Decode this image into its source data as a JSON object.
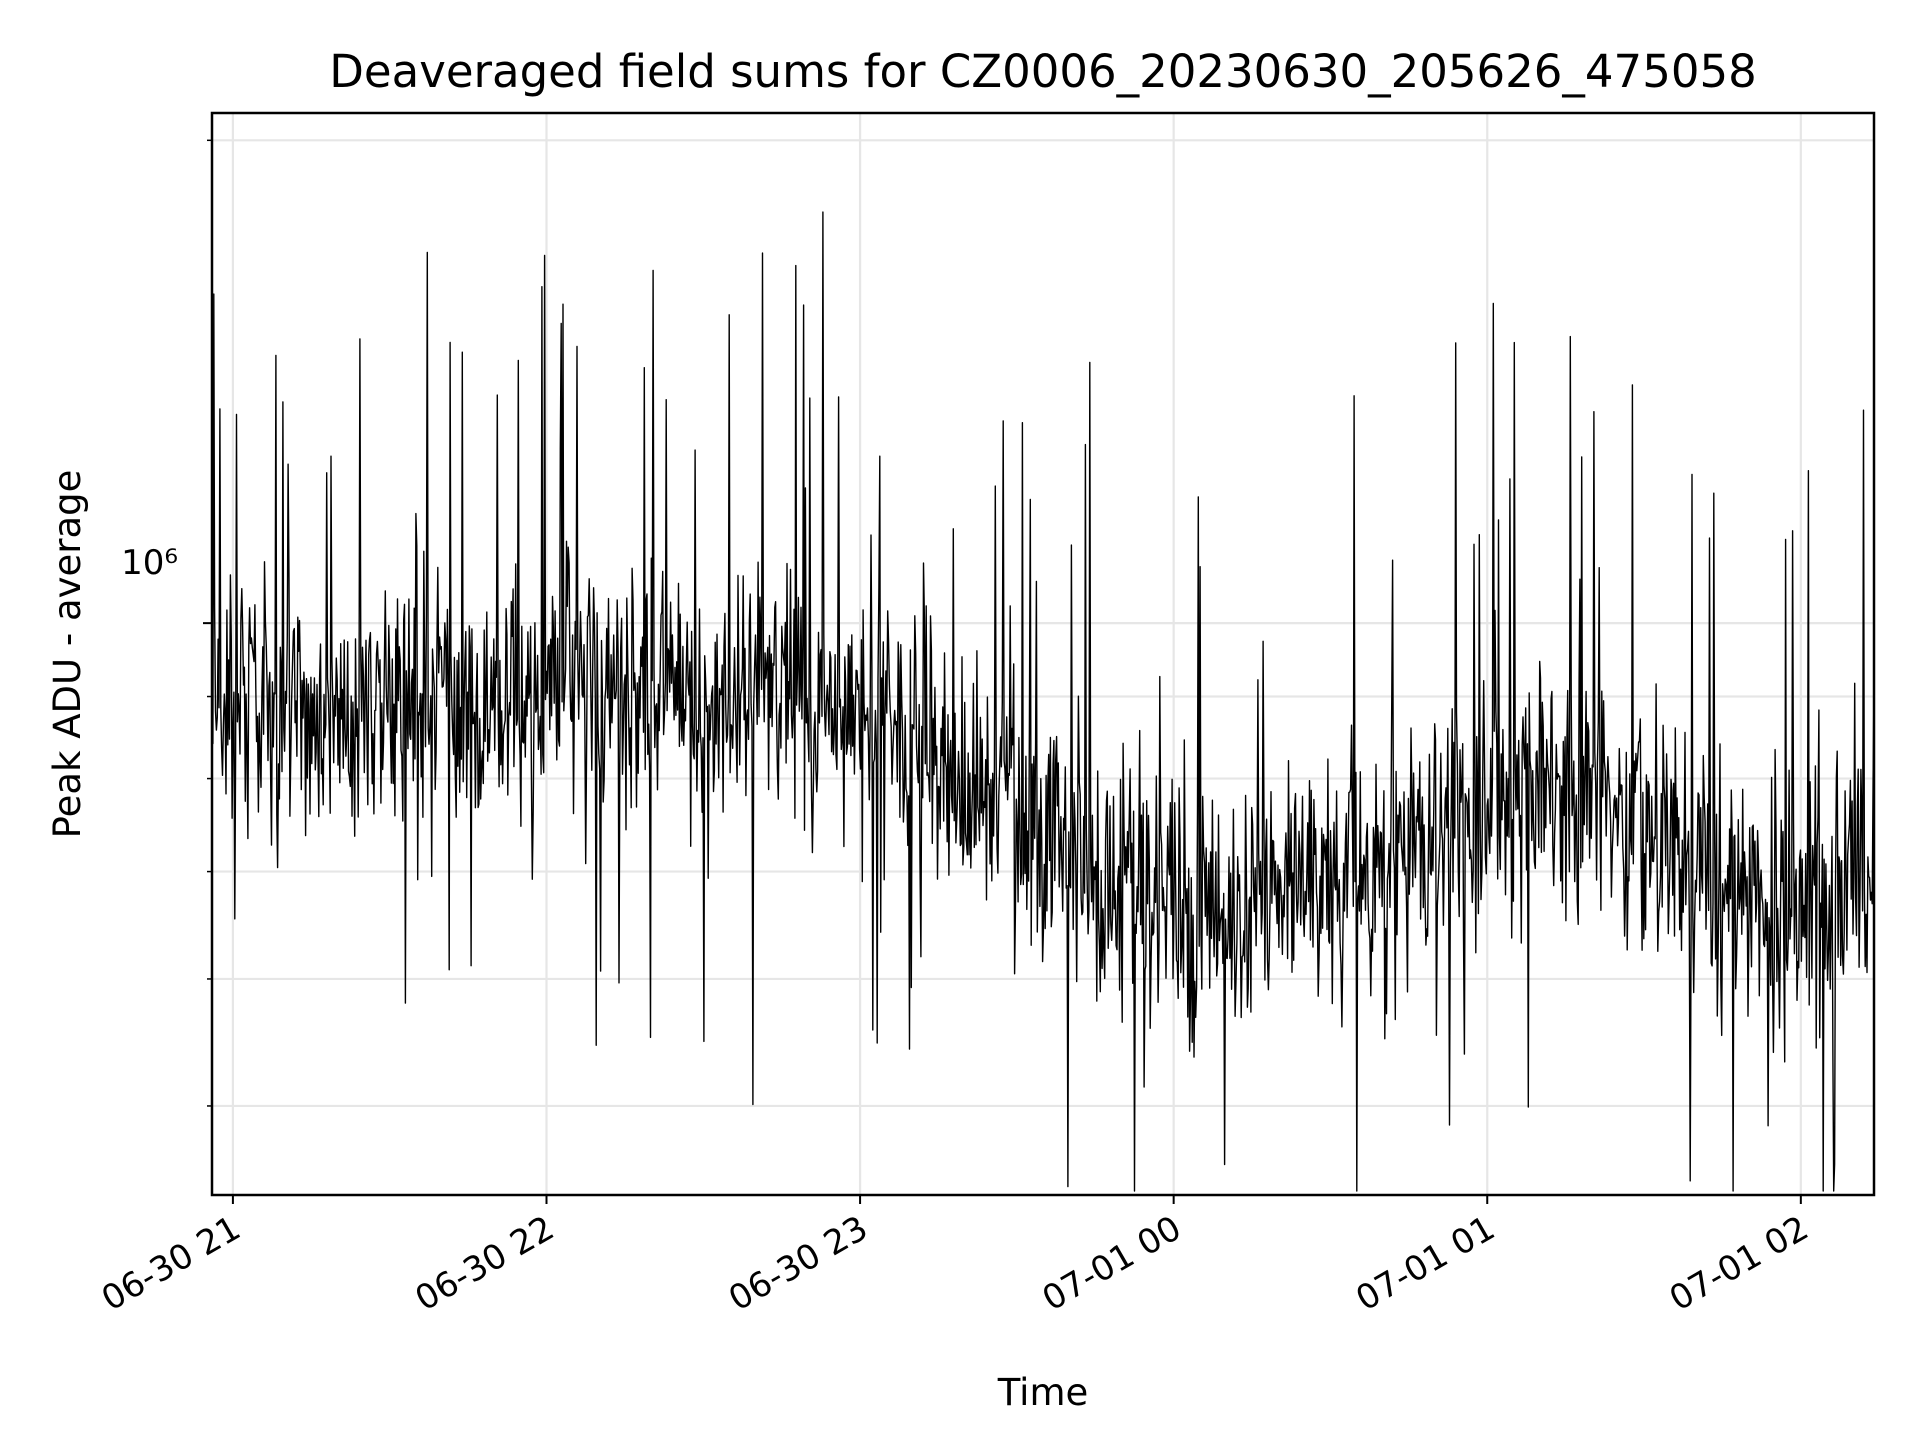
{
  "chart_data": {
    "type": "line",
    "title": "Deaveraged field sums for CZ0006_20230630_205626_475058",
    "xlabel": "Time",
    "ylabel": "Peak ADU - average",
    "y_scale": "log",
    "x_ticks": [
      "06-30 21",
      "06-30 22",
      "06-30 23",
      "07-01 00",
      "07-01 01",
      "07-01 02"
    ],
    "x_range": [
      "2023-06-30 20:56",
      "2023-07-01 02:14"
    ],
    "y_range": [
      440000,
      2080000
    ],
    "y_major_tick_label": "10⁶",
    "y_minor_ticks": [
      500000,
      600000,
      700000,
      800000,
      900000,
      2000000
    ],
    "grid": true,
    "line_color": "#000000",
    "series": [
      {
        "x": [
          "2023-06-30 20:56",
          "2023-06-30 21:05",
          "2023-06-30 21:15",
          "2023-06-30 21:25",
          "2023-06-30 21:35",
          "2023-06-30 21:45",
          "2023-06-30 21:55",
          "2023-06-30 22:05",
          "2023-06-30 22:15",
          "2023-06-30 22:25",
          "2023-06-30 22:35",
          "2023-06-30 22:45",
          "2023-06-30 22:55",
          "2023-06-30 23:05",
          "2023-06-30 23:15",
          "2023-06-30 23:25",
          "2023-06-30 23:35",
          "2023-06-30 23:45",
          "2023-06-30 23:55",
          "2023-07-01 00:05",
          "2023-07-01 00:15",
          "2023-07-01 00:25",
          "2023-07-01 00:35",
          "2023-07-01 00:45",
          "2023-07-01 00:55",
          "2023-07-01 01:05",
          "2023-07-01 01:15",
          "2023-07-01 01:25",
          "2023-07-01 01:35",
          "2023-07-01 01:45",
          "2023-07-01 01:55",
          "2023-07-01 02:05",
          "2023-07-01 02:14"
        ],
        "values": [
          870000,
          890000,
          860000,
          880000,
          900000,
          880000,
          900000,
          930000,
          920000,
          890000,
          880000,
          910000,
          860000,
          900000,
          800000,
          780000,
          740000,
          700000,
          680000,
          650000,
          670000,
          680000,
          700000,
          710000,
          750000,
          790000,
          790000,
          760000,
          720000,
          690000,
          660000,
          650000,
          720000
        ]
      }
    ]
  }
}
